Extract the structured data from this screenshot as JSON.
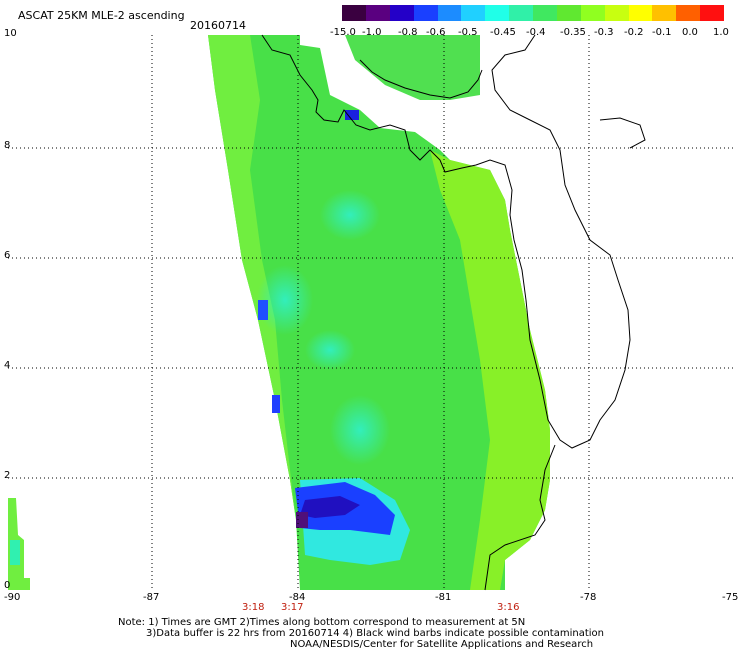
{
  "header": {
    "title": "ASCAT 25KM MLE-2 ascending",
    "date": "20160714"
  },
  "colorbar": {
    "colors": [
      "#3a0040",
      "#5a0080",
      "#2400c8",
      "#1a40ff",
      "#1c8cff",
      "#20d0ff",
      "#20ffe8",
      "#30f0a8",
      "#40e860",
      "#60e830",
      "#90ff20",
      "#c8ff10",
      "#ffff00",
      "#ffc000",
      "#ff6000",
      "#ff1010"
    ],
    "labels": [
      "-15.0",
      "-1.0",
      "-0.8",
      "-0.6",
      "-0.5",
      "-0.45",
      "-0.4",
      "-0.35",
      "-0.3",
      "-0.2",
      "-0.1",
      "0.0",
      "1.0"
    ]
  },
  "axes": {
    "x_ticks": [
      "-90",
      "-87",
      "-84",
      "-81",
      "-78",
      "-75"
    ],
    "y_ticks": [
      "0",
      "2",
      "4",
      "6",
      "8",
      "10"
    ],
    "times": [
      "3:18",
      "3:17",
      "3:16"
    ]
  },
  "notes": {
    "line1": "Note: 1) Times are GMT 2)Times along bottom correspond to measurement at 5N",
    "line2": "3)Data buffer is 22 hrs from 20160714 4) Black wind barbs indicate possible contamination",
    "line3": "NOAA/NESDIS/Center for Satellite Applications and Research"
  }
}
